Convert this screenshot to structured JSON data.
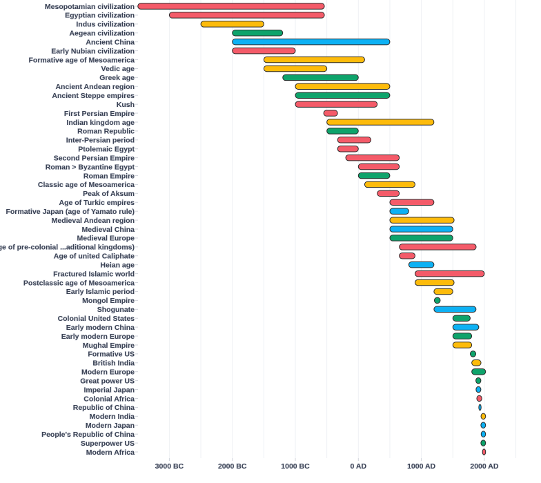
{
  "chart_data": {
    "type": "bar",
    "orientation": "horizontal-range",
    "xlim": [
      -3500,
      2600
    ],
    "grid": true,
    "x_ticks": [
      {
        "value": -3000,
        "label": "3000 BC"
      },
      {
        "value": -2000,
        "label": "2000 BC"
      },
      {
        "value": -1000,
        "label": "1000 BC"
      },
      {
        "value": 0,
        "label": "0 AD"
      },
      {
        "value": 1000,
        "label": "1000 AD"
      },
      {
        "value": 2000,
        "label": "2000 AD"
      }
    ],
    "colors": {
      "red": "#f45b69",
      "yellow": "#fdbb0b",
      "green": "#0ea36b",
      "blue": "#0db1f4"
    },
    "bars": [
      {
        "label": "Mesopotamian civilization",
        "start": -3500,
        "end": -539,
        "color": "red"
      },
      {
        "label": "Egyptian civilization",
        "start": -3000,
        "end": -539,
        "color": "red"
      },
      {
        "label": "Indus civilization",
        "start": -2500,
        "end": -1500,
        "color": "yellow"
      },
      {
        "label": "Aegean civilization",
        "start": -2000,
        "end": -1200,
        "color": "green"
      },
      {
        "label": "Ancient China",
        "start": -2000,
        "end": 500,
        "color": "blue"
      },
      {
        "label": "Early Nubian civilization",
        "start": -2000,
        "end": -1000,
        "color": "red"
      },
      {
        "label": "Formative age of Mesoamerica",
        "start": -1500,
        "end": 100,
        "color": "yellow"
      },
      {
        "label": "Vedic age",
        "start": -1500,
        "end": -500,
        "color": "yellow"
      },
      {
        "label": "Greek age",
        "start": -1200,
        "end": 0,
        "color": "green"
      },
      {
        "label": "Ancient Andean region",
        "start": -1000,
        "end": 500,
        "color": "yellow"
      },
      {
        "label": "Ancient Steppe empires",
        "start": -1000,
        "end": 500,
        "color": "green"
      },
      {
        "label": "Kush",
        "start": -1000,
        "end": 300,
        "color": "red"
      },
      {
        "label": "First Persian Empire",
        "start": -550,
        "end": -330,
        "color": "red"
      },
      {
        "label": "Indian kingdom age",
        "start": -500,
        "end": 1200,
        "color": "yellow"
      },
      {
        "label": "Roman Republic",
        "start": -500,
        "end": 0,
        "color": "green"
      },
      {
        "label": "Inter-Persian period",
        "start": -330,
        "end": 200,
        "color": "red"
      },
      {
        "label": "Ptolemaic Egypt",
        "start": -330,
        "end": 0,
        "color": "red"
      },
      {
        "label": "Second Persian Empire",
        "start": -200,
        "end": 650,
        "color": "red"
      },
      {
        "label": "Roman > Byzantine Egypt",
        "start": 0,
        "end": 650,
        "color": "red"
      },
      {
        "label": "Roman Empire",
        "start": 0,
        "end": 500,
        "color": "green"
      },
      {
        "label": "Classic age of Mesoamerica",
        "start": 100,
        "end": 900,
        "color": "yellow"
      },
      {
        "label": "Peak of Aksum",
        "start": 300,
        "end": 650,
        "color": "red"
      },
      {
        "label": "Age of Turkic empires",
        "start": 500,
        "end": 1200,
        "color": "red"
      },
      {
        "label": "Formative Japan (age of Yamato rule)",
        "start": 500,
        "end": 800,
        "color": "blue"
      },
      {
        "label": "Medieval Andean region",
        "start": 500,
        "end": 1520,
        "color": "yellow"
      },
      {
        "label": "Medieval China",
        "start": 500,
        "end": 1500,
        "color": "blue"
      },
      {
        "label": "Medieval Europe",
        "start": 500,
        "end": 1500,
        "color": "green"
      },
      {
        "label": "Age of pre-colonial ...aditional kingdoms)",
        "start": 650,
        "end": 1870,
        "color": "red"
      },
      {
        "label": "Age of united Caliphate",
        "start": 650,
        "end": 900,
        "color": "red"
      },
      {
        "label": "Heian age",
        "start": 800,
        "end": 1200,
        "color": "blue"
      },
      {
        "label": "Fractured Islamic world",
        "start": 900,
        "end": 2000,
        "color": "red"
      },
      {
        "label": "Postclassic age of Mesoamerica",
        "start": 900,
        "end": 1520,
        "color": "yellow"
      },
      {
        "label": "Early Islamic period",
        "start": 1200,
        "end": 1500,
        "color": "yellow"
      },
      {
        "label": "Mongol Empire",
        "start": 1206,
        "end": 1300,
        "color": "green"
      },
      {
        "label": "Shogunate",
        "start": 1200,
        "end": 1868,
        "color": "blue"
      },
      {
        "label": "Colonial United States",
        "start": 1500,
        "end": 1776,
        "color": "green"
      },
      {
        "label": "Early modern China",
        "start": 1500,
        "end": 1912,
        "color": "blue"
      },
      {
        "label": "Early modern Europe",
        "start": 1500,
        "end": 1800,
        "color": "green"
      },
      {
        "label": "Mughal Empire",
        "start": 1500,
        "end": 1800,
        "color": "yellow"
      },
      {
        "label": "Formative US",
        "start": 1776,
        "end": 1865,
        "color": "green"
      },
      {
        "label": "British India",
        "start": 1800,
        "end": 1947,
        "color": "yellow"
      },
      {
        "label": "Modern Europe",
        "start": 1800,
        "end": 2020,
        "color": "green"
      },
      {
        "label": "Great power US",
        "start": 1865,
        "end": 1945,
        "color": "green"
      },
      {
        "label": "Imperial Japan",
        "start": 1868,
        "end": 1945,
        "color": "blue"
      },
      {
        "label": "Colonial Africa",
        "start": 1880,
        "end": 1960,
        "color": "red"
      },
      {
        "label": "Republic of China",
        "start": 1912,
        "end": 1949,
        "color": "blue"
      },
      {
        "label": "Modern India",
        "start": 1947,
        "end": 2020,
        "color": "yellow"
      },
      {
        "label": "Modern Japan",
        "start": 1945,
        "end": 2020,
        "color": "blue"
      },
      {
        "label": "People's Republic of China",
        "start": 1949,
        "end": 2020,
        "color": "blue"
      },
      {
        "label": "Superpower US",
        "start": 1945,
        "end": 2020,
        "color": "green"
      },
      {
        "label": "Modern Africa",
        "start": 1970,
        "end": 2020,
        "color": "red"
      }
    ]
  }
}
